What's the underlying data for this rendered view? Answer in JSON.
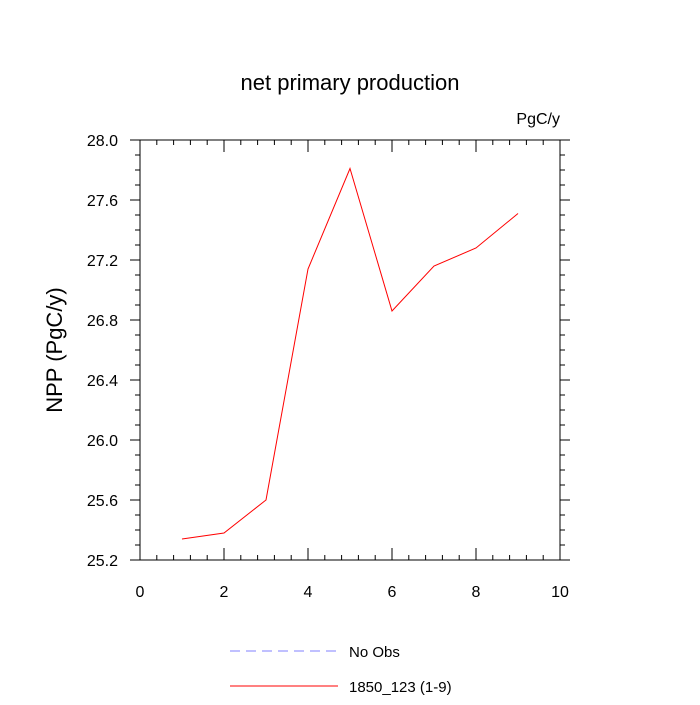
{
  "chart_data": {
    "type": "line",
    "title": "net primary production",
    "units_label": "PgC/y",
    "xlabel": "",
    "ylabel": "NPP  (PgC/y)",
    "xlim": [
      0,
      10
    ],
    "ylim": [
      25.2,
      28.0
    ],
    "x_ticks": [
      0,
      2,
      4,
      6,
      8,
      10
    ],
    "x_tick_labels": [
      "0",
      "2",
      "4",
      "6",
      "8",
      "10"
    ],
    "y_ticks": [
      25.2,
      25.6,
      26.0,
      26.4,
      26.8,
      27.2,
      27.6,
      28.0
    ],
    "y_tick_labels": [
      "25.2",
      "25.6",
      "26.0",
      "26.4",
      "26.8",
      "27.2",
      "27.6",
      "28.0"
    ],
    "grid": false,
    "legend_placement": "bottom-center",
    "series": [
      {
        "name": "1850_123 (1-9)",
        "color": "#ff0000",
        "line_style": "solid",
        "x": [
          1,
          2,
          3,
          4,
          5,
          6,
          7,
          8,
          9
        ],
        "y": [
          25.34,
          25.38,
          25.6,
          27.14,
          27.81,
          26.86,
          27.16,
          27.28,
          27.51
        ]
      }
    ],
    "legend": [
      {
        "label": "No Obs",
        "color": "#8080ff",
        "line_style": "dashed"
      },
      {
        "label": "1850_123 (1-9)",
        "color": "#ff0000",
        "line_style": "solid"
      }
    ]
  }
}
